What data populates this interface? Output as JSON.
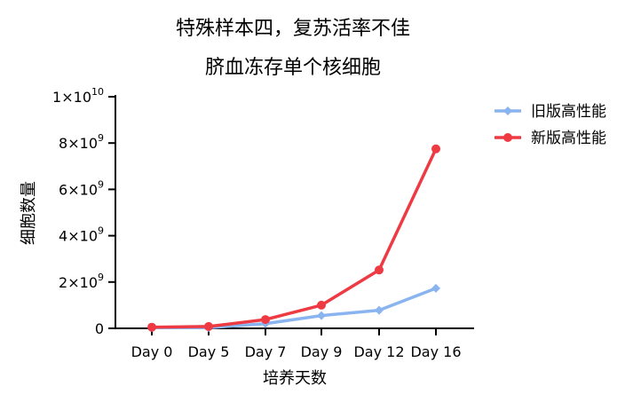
{
  "chart_data": {
    "type": "line",
    "title_lines": [
      "特殊样本四，复苏活率不佳",
      "脐血冻存单个核细胞"
    ],
    "xlabel": "培养天数",
    "ylabel": "细胞数量",
    "categories": [
      "Day 0",
      "Day 5",
      "Day 7",
      "Day 9",
      "Day 12",
      "Day 16"
    ],
    "ylim": [
      0,
      10000000000
    ],
    "yticks": [
      {
        "value": 0,
        "mantissa": "0",
        "exp": ""
      },
      {
        "value": 2000000000,
        "mantissa": "2×10",
        "exp": "9"
      },
      {
        "value": 4000000000,
        "mantissa": "4×10",
        "exp": "9"
      },
      {
        "value": 6000000000,
        "mantissa": "6×10",
        "exp": "9"
      },
      {
        "value": 8000000000,
        "mantissa": "8×10",
        "exp": "9"
      },
      {
        "value": 10000000000,
        "mantissa": "1×10",
        "exp": "10"
      }
    ],
    "grid": false,
    "legend_position": "top-right",
    "series": [
      {
        "name": "旧版高性能",
        "color": "#8ab4f0",
        "marker": "diamond",
        "values": [
          30000000,
          30000000,
          200000000,
          550000000,
          780000000,
          1730000000
        ]
      },
      {
        "name": "新版高性能",
        "color": "#ee3a43",
        "marker": "circle",
        "values": [
          50000000,
          80000000,
          380000000,
          1000000000,
          2520000000,
          7750000000
        ]
      }
    ]
  }
}
